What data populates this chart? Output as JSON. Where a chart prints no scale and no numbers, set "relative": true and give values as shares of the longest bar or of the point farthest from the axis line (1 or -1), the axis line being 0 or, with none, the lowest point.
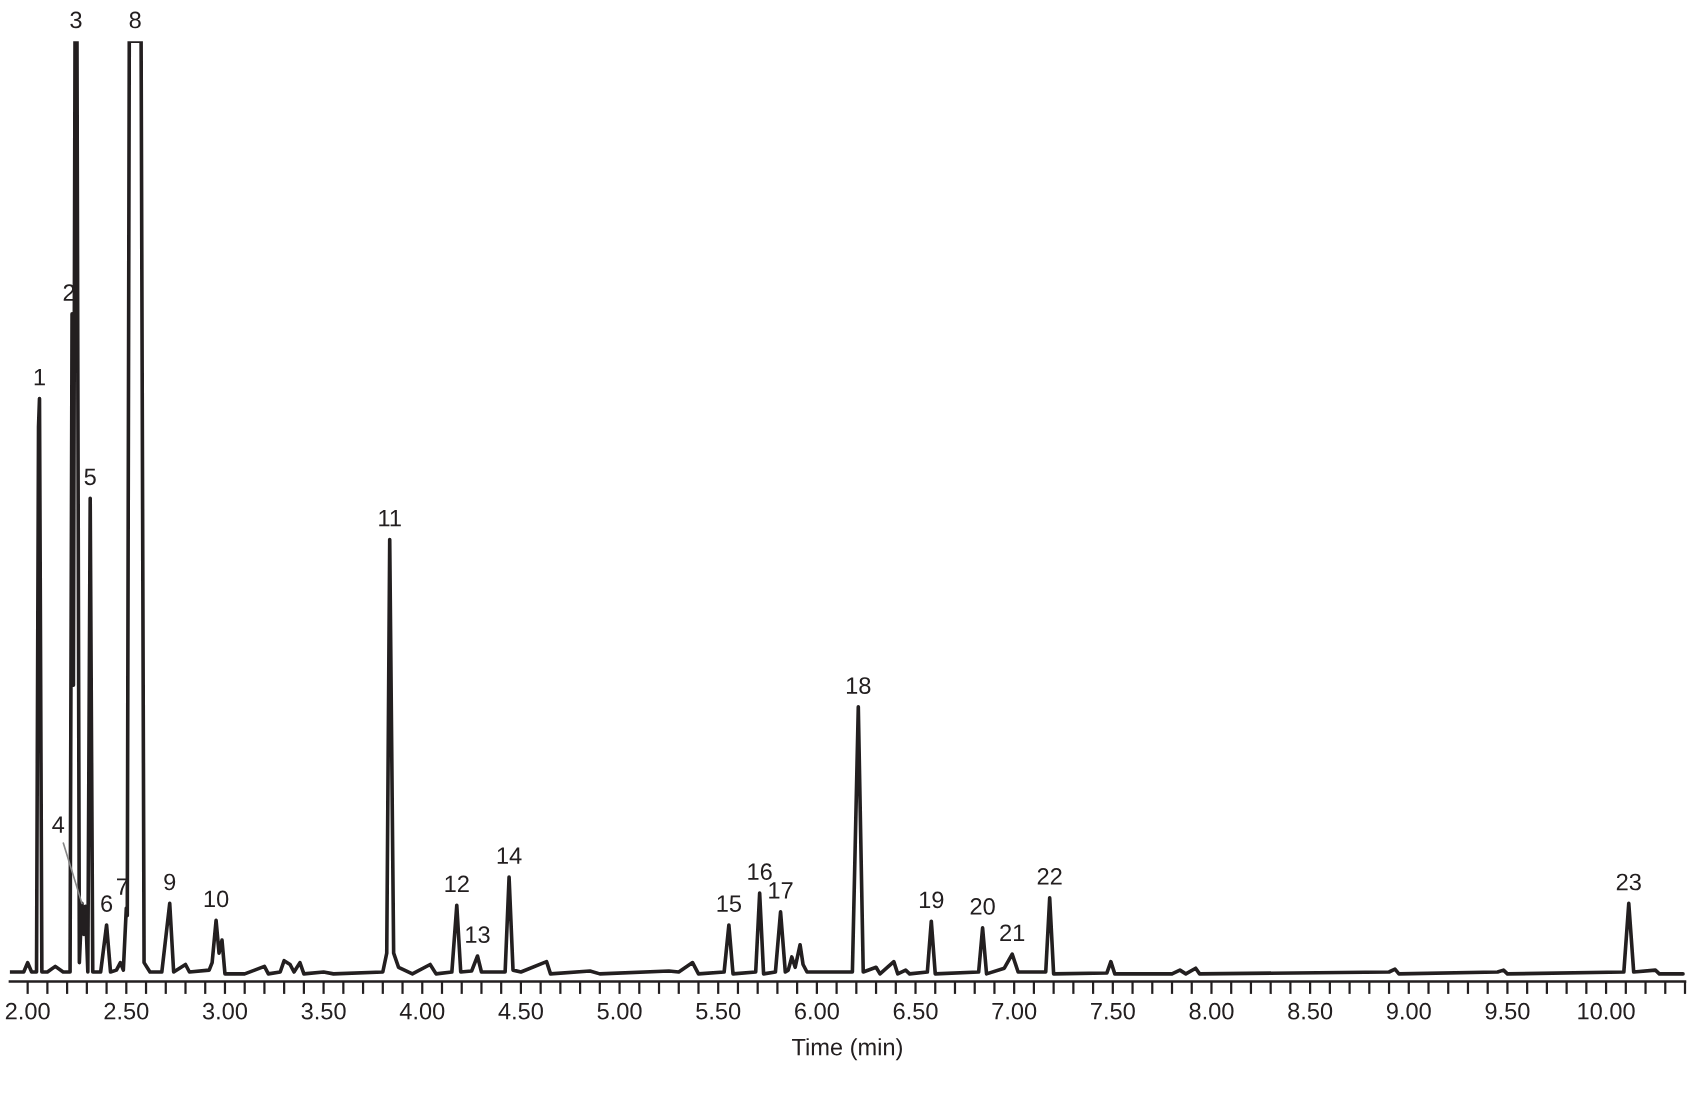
{
  "chart_data": {
    "type": "line",
    "relative": true,
    "xlabel": "Time (min)",
    "xlim": [
      1.91,
      10.4
    ],
    "xticks": [
      {
        "value": 2.0,
        "label": "2.00"
      },
      {
        "value": 2.1,
        "label": null
      },
      {
        "value": 2.2,
        "label": null
      },
      {
        "value": 2.3,
        "label": null
      },
      {
        "value": 2.4,
        "label": null
      },
      {
        "value": 2.5,
        "label": "2.50"
      },
      {
        "value": 2.6,
        "label": null
      },
      {
        "value": 2.7,
        "label": null
      },
      {
        "value": 2.8,
        "label": null
      },
      {
        "value": 2.9,
        "label": null
      },
      {
        "value": 3.0,
        "label": "3.00"
      },
      {
        "value": 3.1,
        "label": null
      },
      {
        "value": 3.2,
        "label": null
      },
      {
        "value": 3.3,
        "label": null
      },
      {
        "value": 3.4,
        "label": null
      },
      {
        "value": 3.5,
        "label": "3.50"
      },
      {
        "value": 3.6,
        "label": null
      },
      {
        "value": 3.7,
        "label": null
      },
      {
        "value": 3.8,
        "label": null
      },
      {
        "value": 3.9,
        "label": null
      },
      {
        "value": 4.0,
        "label": "4.00"
      },
      {
        "value": 4.1,
        "label": null
      },
      {
        "value": 4.2,
        "label": null
      },
      {
        "value": 4.3,
        "label": null
      },
      {
        "value": 4.4,
        "label": null
      },
      {
        "value": 4.5,
        "label": "4.50"
      },
      {
        "value": 4.6,
        "label": null
      },
      {
        "value": 4.7,
        "label": null
      },
      {
        "value": 4.8,
        "label": null
      },
      {
        "value": 4.9,
        "label": null
      },
      {
        "value": 5.0,
        "label": "5.00"
      },
      {
        "value": 5.1,
        "label": null
      },
      {
        "value": 5.2,
        "label": null
      },
      {
        "value": 5.3,
        "label": null
      },
      {
        "value": 5.4,
        "label": null
      },
      {
        "value": 5.5,
        "label": "5.50"
      },
      {
        "value": 5.6,
        "label": null
      },
      {
        "value": 5.7,
        "label": null
      },
      {
        "value": 5.8,
        "label": null
      },
      {
        "value": 5.9,
        "label": null
      },
      {
        "value": 6.0,
        "label": "6.00"
      },
      {
        "value": 6.1,
        "label": null
      },
      {
        "value": 6.2,
        "label": null
      },
      {
        "value": 6.3,
        "label": null
      },
      {
        "value": 6.4,
        "label": null
      },
      {
        "value": 6.5,
        "label": "6.50"
      },
      {
        "value": 6.6,
        "label": null
      },
      {
        "value": 6.7,
        "label": null
      },
      {
        "value": 6.8,
        "label": null
      },
      {
        "value": 6.9,
        "label": null
      },
      {
        "value": 7.0,
        "label": "7.00"
      },
      {
        "value": 7.1,
        "label": null
      },
      {
        "value": 7.2,
        "label": null
      },
      {
        "value": 7.3,
        "label": null
      },
      {
        "value": 7.4,
        "label": null
      },
      {
        "value": 7.5,
        "label": "7.50"
      },
      {
        "value": 7.6,
        "label": null
      },
      {
        "value": 7.7,
        "label": null
      },
      {
        "value": 7.8,
        "label": null
      },
      {
        "value": 7.9,
        "label": null
      },
      {
        "value": 8.0,
        "label": "8.00"
      },
      {
        "value": 8.1,
        "label": null
      },
      {
        "value": 8.2,
        "label": null
      },
      {
        "value": 8.3,
        "label": null
      },
      {
        "value": 8.4,
        "label": null
      },
      {
        "value": 8.5,
        "label": "8.50"
      },
      {
        "value": 8.6,
        "label": null
      },
      {
        "value": 8.7,
        "label": null
      },
      {
        "value": 8.8,
        "label": null
      },
      {
        "value": 8.9,
        "label": null
      },
      {
        "value": 9.0,
        "label": "9.00"
      },
      {
        "value": 9.1,
        "label": null
      },
      {
        "value": 9.2,
        "label": null
      },
      {
        "value": 9.3,
        "label": null
      },
      {
        "value": 9.4,
        "label": null
      },
      {
        "value": 9.5,
        "label": "9.50"
      },
      {
        "value": 9.6,
        "label": null
      },
      {
        "value": 9.7,
        "label": null
      },
      {
        "value": 9.8,
        "label": null
      },
      {
        "value": 9.9,
        "label": null
      },
      {
        "value": 10.0,
        "label": "10.00"
      },
      {
        "value": 10.1,
        "label": null
      },
      {
        "value": 10.2,
        "label": null
      },
      {
        "value": 10.3,
        "label": null
      },
      {
        "value": 10.4,
        "label": null
      }
    ],
    "series": [
      {
        "color": "#231f20",
        "x": [
          1.91,
          1.98,
          2.0,
          2.02,
          2.045,
          2.055,
          2.06,
          2.072,
          2.1,
          2.14,
          2.18,
          2.215,
          2.225,
          2.232,
          2.24,
          2.25,
          2.262,
          2.275,
          2.285,
          2.293,
          2.305,
          2.317,
          2.33,
          2.37,
          2.4,
          2.42,
          2.45,
          2.47,
          2.485,
          2.5,
          2.505,
          2.515,
          2.575,
          2.59,
          2.62,
          2.68,
          2.72,
          2.74,
          2.8,
          2.82,
          2.92,
          2.935,
          2.955,
          2.97,
          2.985,
          3.0,
          3.1,
          3.2,
          3.22,
          3.28,
          3.3,
          3.33,
          3.35,
          3.38,
          3.4,
          3.5,
          3.55,
          3.8,
          3.82,
          3.835,
          3.855,
          3.88,
          3.95,
          4.04,
          4.07,
          4.15,
          4.175,
          4.195,
          4.25,
          4.28,
          4.3,
          4.42,
          4.44,
          4.46,
          4.5,
          4.63,
          4.65,
          4.85,
          4.9,
          5.25,
          5.3,
          5.37,
          5.4,
          5.53,
          5.554,
          5.575,
          5.69,
          5.71,
          5.73,
          5.79,
          5.816,
          5.84,
          5.855,
          5.873,
          5.89,
          5.915,
          5.93,
          5.95,
          6.18,
          6.21,
          6.235,
          6.3,
          6.32,
          6.39,
          6.41,
          6.45,
          6.47,
          6.56,
          6.58,
          6.6,
          6.82,
          6.84,
          6.86,
          6.95,
          6.99,
          7.02,
          7.16,
          7.18,
          7.2,
          7.47,
          7.49,
          7.51,
          7.8,
          7.84,
          7.87,
          7.92,
          7.94,
          8.9,
          8.93,
          8.95,
          9.45,
          9.48,
          9.5,
          10.09,
          10.115,
          10.14,
          10.25,
          10.27,
          10.39
        ],
        "values": [
          0.01,
          0.01,
          0.02,
          0.01,
          0.01,
          0.59,
          0.62,
          0.01,
          0.01,
          0.016,
          0.01,
          0.01,
          0.71,
          0.315,
          1,
          1,
          0.02,
          0.083,
          0.05,
          0.08,
          0.01,
          0.514,
          0.01,
          0.01,
          0.06,
          0.01,
          0.012,
          0.02,
          0.012,
          0.078,
          0.07,
          1,
          1,
          0.02,
          0.01,
          0.01,
          0.083,
          0.01,
          0.018,
          0.01,
          0.012,
          0.02,
          0.065,
          0.03,
          0.044,
          0.008,
          0.008,
          0.016,
          0.008,
          0.01,
          0.022,
          0.018,
          0.01,
          0.02,
          0.008,
          0.01,
          0.008,
          0.01,
          0.03,
          0.47,
          0.03,
          0.015,
          0.008,
          0.018,
          0.008,
          0.01,
          0.081,
          0.01,
          0.011,
          0.027,
          0.01,
          0.01,
          0.111,
          0.012,
          0.01,
          0.021,
          0.008,
          0.011,
          0.008,
          0.011,
          0.01,
          0.02,
          0.008,
          0.01,
          0.06,
          0.008,
          0.01,
          0.094,
          0.008,
          0.01,
          0.074,
          0.01,
          0.012,
          0.026,
          0.015,
          0.039,
          0.018,
          0.01,
          0.01,
          0.292,
          0.01,
          0.015,
          0.008,
          0.021,
          0.008,
          0.012,
          0.008,
          0.01,
          0.064,
          0.008,
          0.01,
          0.057,
          0.008,
          0.014,
          0.029,
          0.01,
          0.01,
          0.089,
          0.008,
          0.009,
          0.021,
          0.008,
          0.008,
          0.012,
          0.008,
          0.014,
          0.008,
          0.01,
          0.013,
          0.008,
          0.01,
          0.012,
          0.008,
          0.01,
          0.083,
          0.01,
          0.012,
          0.008,
          0.008
        ]
      }
    ],
    "annotations": [
      {
        "text": "1",
        "x": 2.06,
        "y": 0.62
      },
      {
        "text": "2",
        "x": 2.225,
        "y": 0.71
      },
      {
        "text": "3",
        "x": 2.245,
        "y": 1
      },
      {
        "text": "4",
        "x": 2.275,
        "y": 0.083
      },
      {
        "text": "5",
        "x": 2.317,
        "y": 0.514
      },
      {
        "text": "6",
        "x": 2.4,
        "y": 0.06
      },
      {
        "text": "7",
        "x": 2.5,
        "y": 0.078
      },
      {
        "text": "8",
        "x": 2.545,
        "y": 1
      },
      {
        "text": "9",
        "x": 2.72,
        "y": 0.083
      },
      {
        "text": "10",
        "x": 2.955,
        "y": 0.065
      },
      {
        "text": "11",
        "x": 3.835,
        "y": 0.47
      },
      {
        "text": "12",
        "x": 4.175,
        "y": 0.081
      },
      {
        "text": "13",
        "x": 4.28,
        "y": 0.027
      },
      {
        "text": "14",
        "x": 4.44,
        "y": 0.111
      },
      {
        "text": "15",
        "x": 5.554,
        "y": 0.06
      },
      {
        "text": "16",
        "x": 5.71,
        "y": 0.094
      },
      {
        "text": "17",
        "x": 5.816,
        "y": 0.074
      },
      {
        "text": "18",
        "x": 6.21,
        "y": 0.292
      },
      {
        "text": "19",
        "x": 6.58,
        "y": 0.064
      },
      {
        "text": "20",
        "x": 6.84,
        "y": 0.057
      },
      {
        "text": "21",
        "x": 6.99,
        "y": 0.029
      },
      {
        "text": "22",
        "x": 7.18,
        "y": 0.089
      },
      {
        "text": "23",
        "x": 10.115,
        "y": 0.083
      }
    ],
    "line_style": "solid",
    "marker": "none"
  }
}
